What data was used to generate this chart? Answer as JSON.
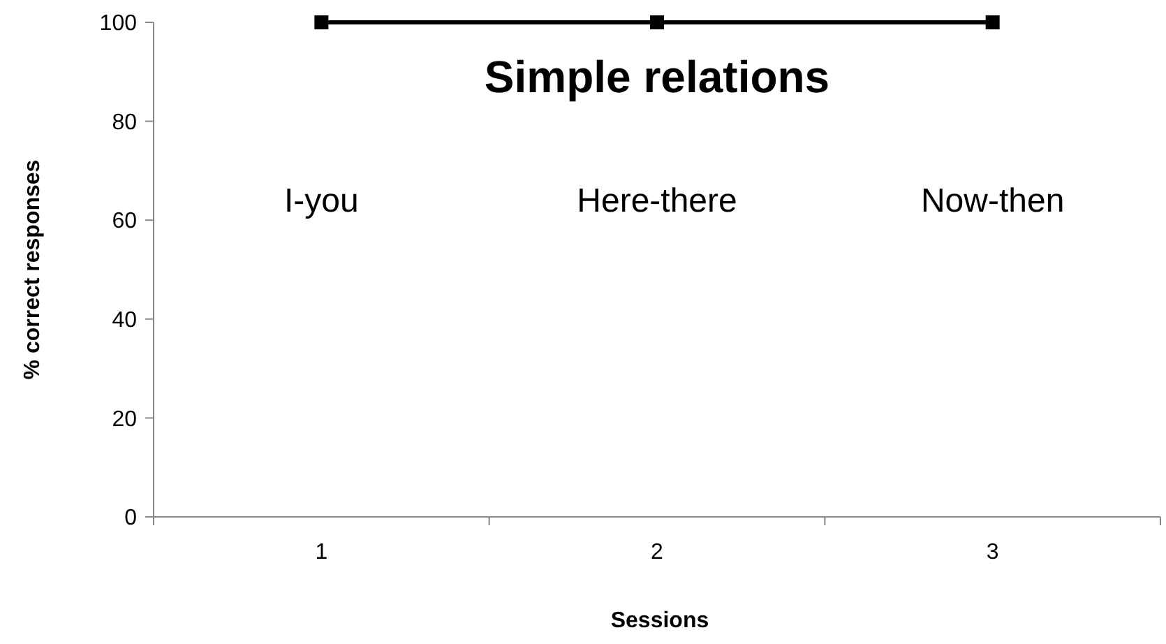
{
  "chart_data": {
    "type": "line",
    "title": "Simple relations",
    "xlabel": "Sessions",
    "ylabel": "% correct responses",
    "categories": [
      "1",
      "2",
      "3"
    ],
    "series": [
      {
        "color": "#000000",
        "values": [
          100,
          100,
          100
        ]
      }
    ],
    "marker": "square",
    "line_style": "solid",
    "ylim": [
      0,
      100
    ],
    "yticks": [
      0,
      20,
      40,
      60,
      80,
      100
    ],
    "grid": false,
    "annotations": [
      "I-you",
      "Here-there",
      "Now-then"
    ]
  }
}
